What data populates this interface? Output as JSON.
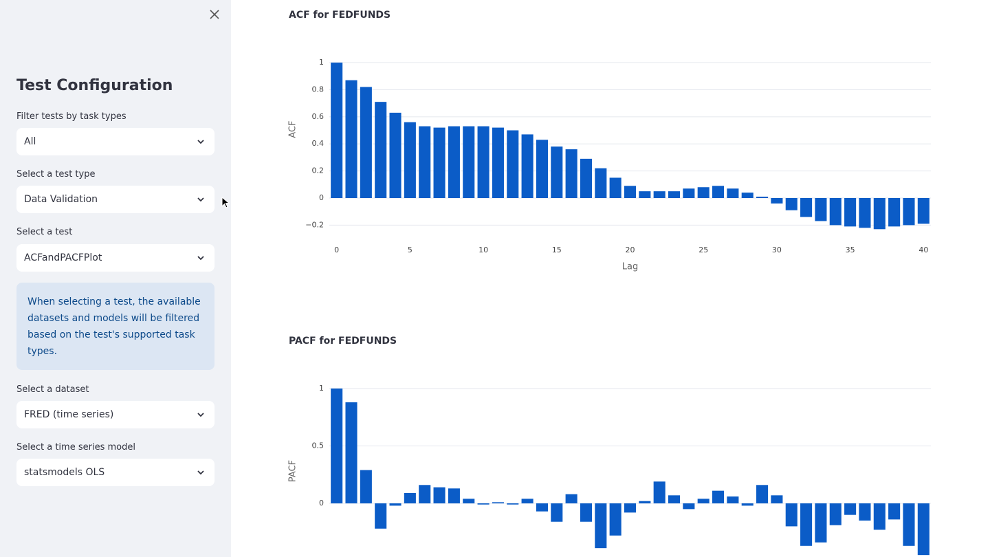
{
  "sidebar": {
    "title": "Test Configuration",
    "fields": [
      {
        "label": "Filter tests by task types",
        "value": "All"
      },
      {
        "label": "Select a test type",
        "value": "Data Validation"
      },
      {
        "label": "Select a test",
        "value": "ACFandPACFPlot"
      },
      {
        "label": "Select a dataset",
        "value": "FRED (time series)"
      },
      {
        "label": "Select a time series model",
        "value": "statsmodels OLS"
      }
    ],
    "info": "When selecting a test, the available datasets and models will be filtered based on the test's supported task types."
  },
  "charts": [
    {
      "type": "bar",
      "title": "ACF for FEDFUNDS",
      "x_label": "Lag",
      "y_label": "ACF",
      "color": "#0b5cc7",
      "x": [
        0,
        1,
        2,
        3,
        4,
        5,
        6,
        7,
        8,
        9,
        10,
        11,
        12,
        13,
        14,
        15,
        16,
        17,
        18,
        19,
        20,
        21,
        22,
        23,
        24,
        25,
        26,
        27,
        28,
        29,
        30,
        31,
        32,
        33,
        34,
        35,
        36,
        37,
        38,
        39,
        40
      ],
      "values": [
        1,
        0.87,
        0.82,
        0.71,
        0.63,
        0.56,
        0.53,
        0.52,
        0.53,
        0.53,
        0.53,
        0.52,
        0.5,
        0.47,
        0.43,
        0.38,
        0.36,
        0.29,
        0.22,
        0.15,
        0.09,
        0.05,
        0.05,
        0.05,
        0.07,
        0.08,
        0.09,
        0.07,
        0.04,
        0.01,
        -0.04,
        -0.09,
        -0.14,
        -0.17,
        -0.2,
        -0.21,
        -0.22,
        -0.23,
        -0.21,
        -0.2,
        -0.19
      ],
      "xlim": [
        -0.5,
        40.5
      ],
      "xticks": [
        0,
        5,
        10,
        15,
        20,
        25,
        30,
        35,
        40
      ],
      "ylim": [
        -0.26,
        1.02
      ],
      "yticks": [
        {
          "value": -0.2,
          "label": "−0.2"
        },
        0,
        0.2,
        0.4,
        0.6,
        0.8,
        1
      ],
      "grid": true
    },
    {
      "type": "bar",
      "title": "PACF for FEDFUNDS",
      "y_label": "PACF",
      "color": "#0b5cc7",
      "x": [
        0,
        1,
        2,
        3,
        4,
        5,
        6,
        7,
        8,
        9,
        10,
        11,
        12,
        13,
        14,
        15,
        16,
        17,
        18,
        19,
        20,
        21,
        22,
        23,
        24,
        25,
        26,
        27,
        28,
        29,
        30,
        31,
        32,
        33,
        34,
        35,
        36,
        37,
        38,
        39,
        40
      ],
      "values": [
        1,
        0.88,
        0.29,
        -0.22,
        -0.02,
        0.09,
        0.16,
        0.14,
        0.13,
        0.04,
        -0.01,
        0.01,
        -0.01,
        0.04,
        -0.07,
        -0.16,
        0.08,
        -0.16,
        -0.39,
        -0.28,
        -0.08,
        0.02,
        0.19,
        0.07,
        -0.05,
        0.04,
        0.11,
        0.06,
        -0.02,
        0.16,
        0.07,
        -0.2,
        -0.37,
        -0.34,
        -0.19,
        -0.1,
        -0.15,
        -0.23,
        -0.14,
        -0.37,
        -0.45
      ],
      "xlim": [
        -0.5,
        40.5
      ],
      "ylim": [
        -0.47,
        1.03
      ],
      "yticks": [
        0,
        0.5,
        1
      ],
      "grid": true
    }
  ]
}
